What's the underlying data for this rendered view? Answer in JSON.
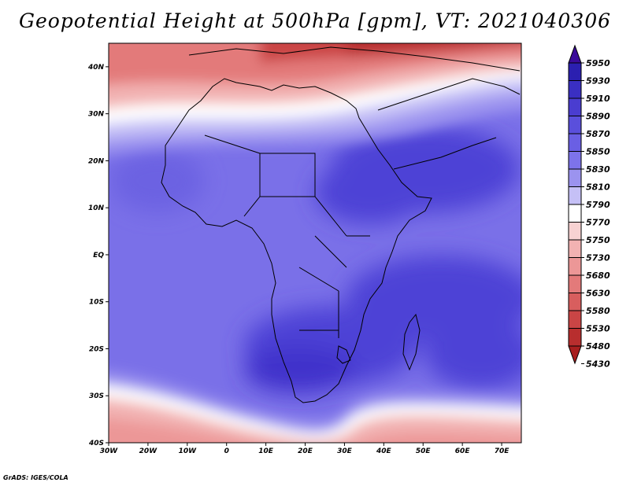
{
  "title": "Geopotential Height at 500hPa [gpm], VT: 2021040306",
  "credit": "GrADS: IGES/COLA",
  "map": {
    "variable": "Geopotential Height at 500hPa",
    "units": "gpm",
    "valid_time": "2021040306",
    "lon_range": [
      -30,
      75
    ],
    "lat_range": [
      -40,
      45
    ],
    "lon_ticks": [
      "30W",
      "20W",
      "10W",
      "0",
      "10E",
      "20E",
      "30E",
      "40E",
      "50E",
      "60E",
      "70E"
    ],
    "lat_ticks": [
      "40N",
      "30N",
      "20N",
      "10N",
      "EQ",
      "10S",
      "20S",
      "30S",
      "40S"
    ]
  },
  "colorbar": {
    "levels": [
      "5950",
      "5930",
      "5910",
      "5890",
      "5870",
      "5850",
      "5830",
      "5810",
      "5790",
      "5770",
      "5750",
      "5730",
      "5680",
      "5630",
      "5580",
      "5530",
      "5480",
      "5430"
    ],
    "colors": [
      "#3a0a9a",
      "#2b1fb0",
      "#3a2fc2",
      "#4a3dd0",
      "#5a4fdc",
      "#6a5fe4",
      "#7d73ea",
      "#9b93ef",
      "#c5c0f6",
      "#ffffff",
      "#f7d2d2",
      "#f2b2b2",
      "#ec9797",
      "#e37a7a",
      "#d85e5e",
      "#ca4545",
      "#b82e2e",
      "#a81f1f"
    ]
  }
}
